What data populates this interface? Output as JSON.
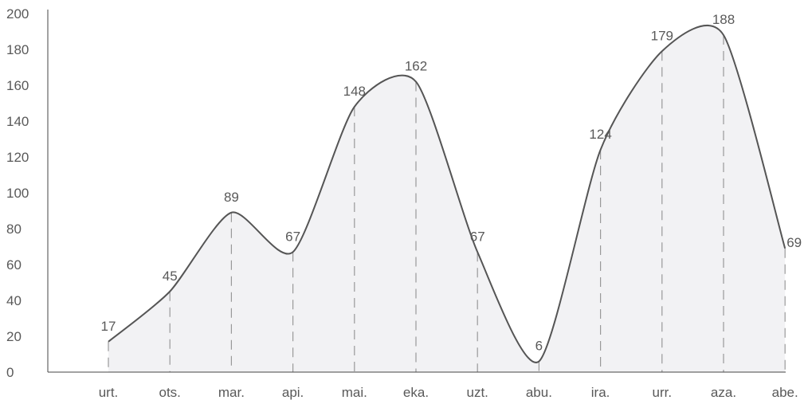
{
  "chart_data": {
    "type": "area",
    "categories": [
      "urt.",
      "ots.",
      "mar.",
      "api.",
      "mai.",
      "eka.",
      "uzt.",
      "abu.",
      "ira.",
      "urr.",
      "aza.",
      "abe."
    ],
    "values": [
      17,
      45,
      89,
      67,
      148,
      162,
      67,
      6,
      124,
      179,
      188,
      69
    ],
    "point_labels": [
      "17",
      "45",
      "89",
      "67",
      "148",
      "162",
      "67",
      "6",
      "124",
      "179",
      "188",
      "69"
    ],
    "y_ticks": [
      "0",
      "20",
      "40",
      "60",
      "80",
      "100",
      "120",
      "140",
      "160",
      "180",
      "200"
    ],
    "ylim": [
      0,
      200
    ],
    "grid": false,
    "legend": "none",
    "colors": {
      "line": "#555555",
      "area": "#f2f2f4",
      "dropline": "#999999",
      "text": "#595959"
    }
  }
}
